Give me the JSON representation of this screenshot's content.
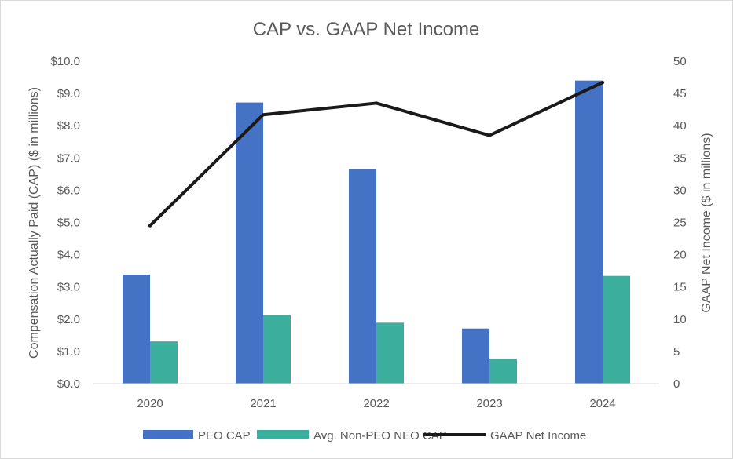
{
  "chart_data": {
    "type": "bar",
    "title": "CAP vs. GAAP Net Income",
    "categories": [
      "2020",
      "2021",
      "2022",
      "2023",
      "2024"
    ],
    "ylabel": "Compensation Actually Paid (CAP) ($ in millions)",
    "y2label": "GAAP Net Income ($ in millions)",
    "ylim": [
      0,
      10
    ],
    "y2lim": [
      0,
      50
    ],
    "yticks": [
      "$0.0",
      "$1.0",
      "$2.0",
      "$3.0",
      "$4.0",
      "$5.0",
      "$6.0",
      "$7.0",
      "$8.0",
      "$9.0",
      "$10.0"
    ],
    "y2ticks": [
      "0",
      "5",
      "10",
      "15",
      "20",
      "25",
      "30",
      "35",
      "40",
      "45",
      "50"
    ],
    "series": [
      {
        "name": "PEO CAP",
        "type": "bar",
        "axis": "left",
        "color": "#4472c4",
        "values": [
          3.38,
          8.72,
          6.65,
          1.71,
          9.4
        ]
      },
      {
        "name": "Avg. Non-PEO NEO CAP",
        "type": "bar",
        "axis": "left",
        "color": "#3cae9e",
        "values": [
          1.31,
          2.13,
          1.89,
          0.78,
          3.34
        ]
      },
      {
        "name": "GAAP Net Income",
        "type": "line",
        "axis": "right",
        "color": "#1a1a1a",
        "values": [
          24.5,
          41.7,
          43.5,
          38.5,
          46.7
        ]
      }
    ],
    "legend": "bottom",
    "grid": false
  }
}
